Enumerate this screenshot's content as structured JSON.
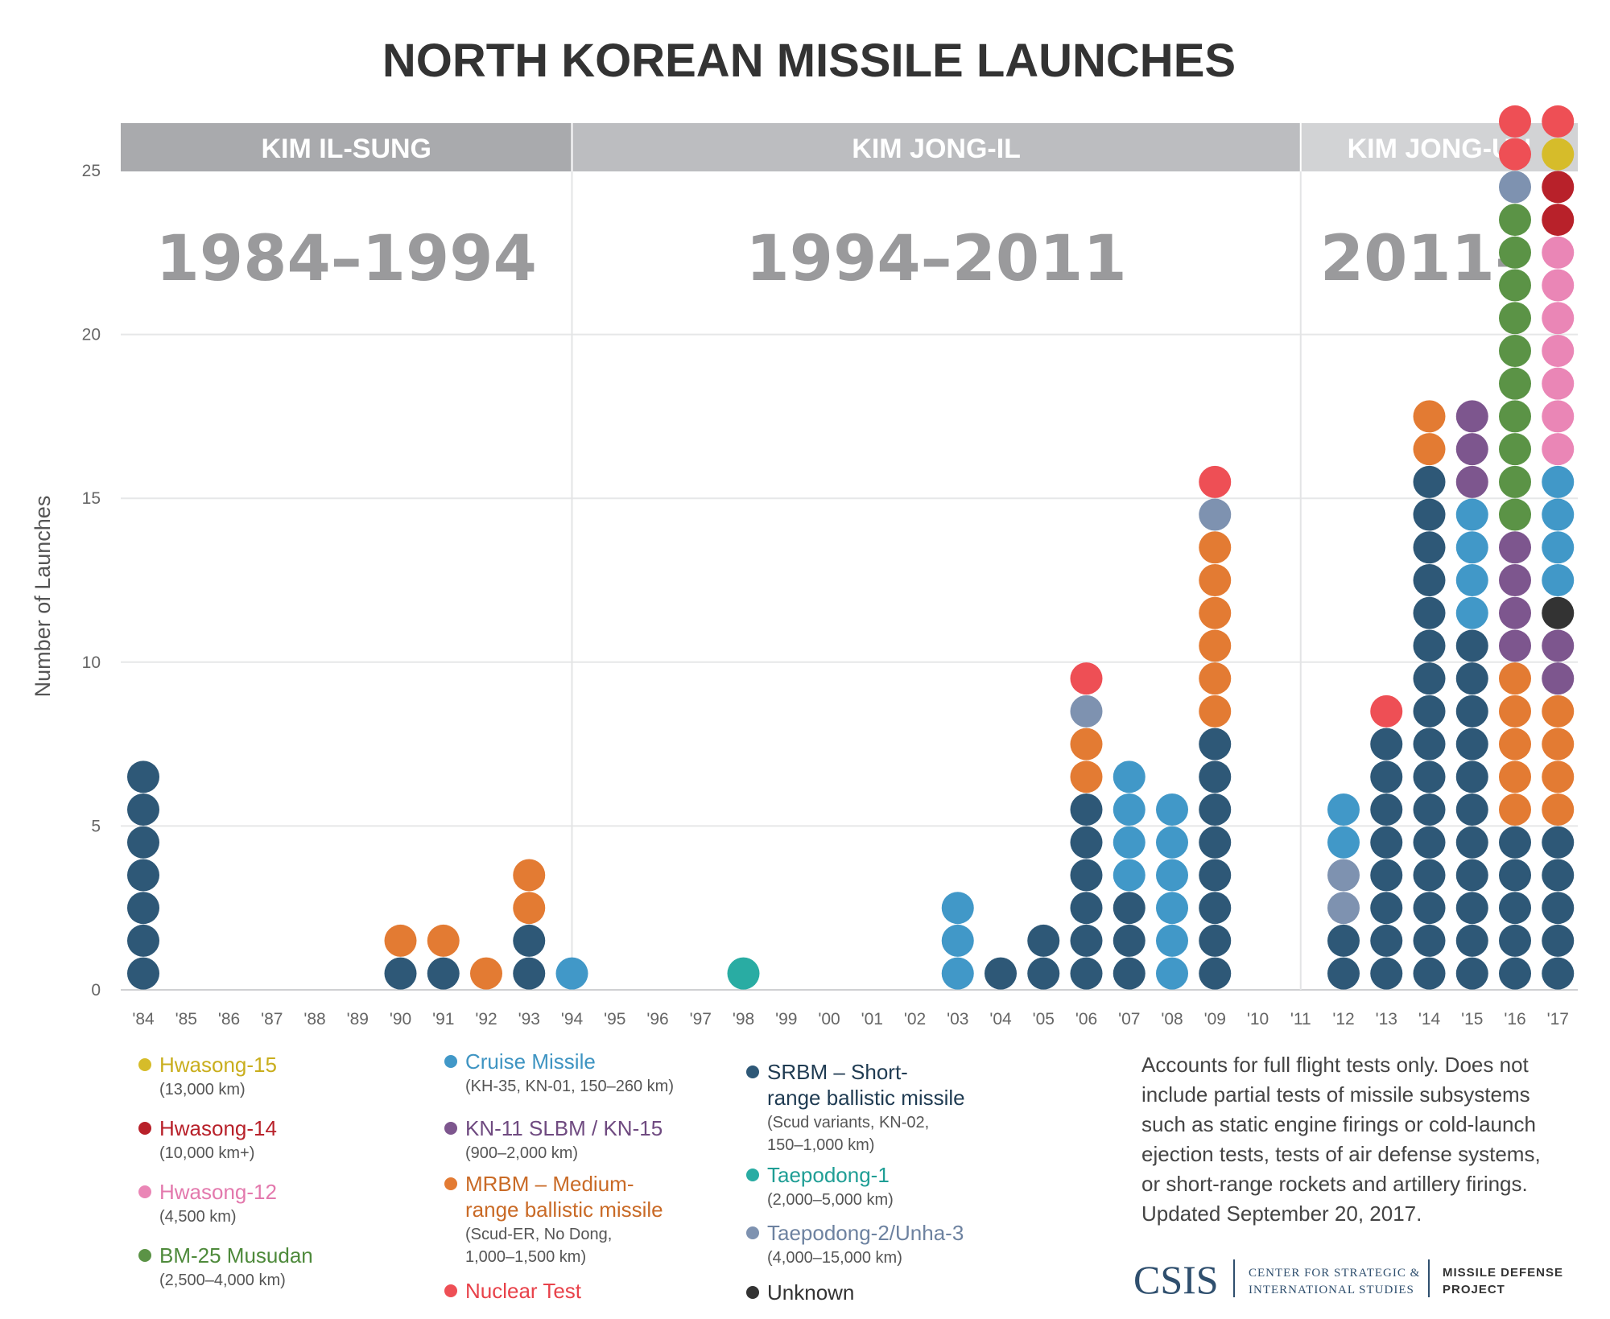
{
  "chart_data": {
    "type": "dot-stack",
    "title": "NORTH KOREAN MISSILE LAUNCHES",
    "ylabel": "Number of Launches",
    "ylim": [
      0,
      25
    ],
    "yticks": [
      "0",
      "5",
      "10",
      "15",
      "20",
      "25"
    ],
    "categories": [
      "'84",
      "'85",
      "'86",
      "'87",
      "'88",
      "'89",
      "'90",
      "'91",
      "'92",
      "'93",
      "'94",
      "'95",
      "'96",
      "'97",
      "'98",
      "'99",
      "'00",
      "'01",
      "'02",
      "'03",
      "'04",
      "'05",
      "'06",
      "'07",
      "'08",
      "'09",
      "'10",
      "'11",
      "'12",
      "'13",
      "'14",
      "'15",
      "'16",
      "'17"
    ],
    "eras": [
      {
        "leader": "KIM IL-SUNG",
        "years": "1984–1994",
        "band_color": "#a9aaad",
        "start_year": "'84",
        "end_year": "'94"
      },
      {
        "leader": "KIM JONG-IL",
        "years": "1994–2011",
        "band_color": "#bcbdc0",
        "start_year": "'94",
        "end_year": "'11"
      },
      {
        "leader": "KIM JONG-UN",
        "years": "2011–",
        "band_color": "#d2d3d5",
        "start_year": "'11",
        "end_year": "'17"
      }
    ],
    "stacks": [
      [
        "srbm",
        "srbm",
        "srbm",
        "srbm",
        "srbm",
        "srbm",
        "srbm"
      ],
      [],
      [],
      [],
      [],
      [],
      [
        "srbm",
        "mrbm"
      ],
      [
        "srbm",
        "mrbm"
      ],
      [
        "mrbm"
      ],
      [
        "srbm",
        "srbm",
        "mrbm",
        "mrbm"
      ],
      [
        "cruise"
      ],
      [],
      [],
      [],
      [
        "taepodong1"
      ],
      [],
      [],
      [],
      [],
      [
        "cruise",
        "cruise",
        "cruise"
      ],
      [
        "srbm"
      ],
      [
        "srbm",
        "srbm"
      ],
      [
        "srbm",
        "srbm",
        "srbm",
        "srbm",
        "srbm",
        "srbm",
        "mrbm",
        "mrbm",
        "taepodong2",
        "nuclear"
      ],
      [
        "srbm",
        "srbm",
        "srbm",
        "cruise",
        "cruise",
        "cruise",
        "cruise"
      ],
      [
        "cruise",
        "cruise",
        "cruise",
        "cruise",
        "cruise",
        "cruise"
      ],
      [
        "srbm",
        "srbm",
        "srbm",
        "srbm",
        "srbm",
        "srbm",
        "srbm",
        "srbm",
        "mrbm",
        "mrbm",
        "mrbm",
        "mrbm",
        "mrbm",
        "mrbm",
        "taepodong2",
        "nuclear"
      ],
      [],
      [],
      [
        "srbm",
        "srbm",
        "taepodong2",
        "taepodong2",
        "cruise",
        "cruise"
      ],
      [
        "srbm",
        "srbm",
        "srbm",
        "srbm",
        "srbm",
        "srbm",
        "srbm",
        "srbm",
        "nuclear"
      ],
      [
        "srbm",
        "srbm",
        "srbm",
        "srbm",
        "srbm",
        "srbm",
        "srbm",
        "srbm",
        "srbm",
        "srbm",
        "srbm",
        "srbm",
        "srbm",
        "srbm",
        "srbm",
        "srbm",
        "mrbm",
        "mrbm"
      ],
      [
        "srbm",
        "srbm",
        "srbm",
        "srbm",
        "srbm",
        "srbm",
        "srbm",
        "srbm",
        "srbm",
        "srbm",
        "srbm",
        "cruise",
        "cruise",
        "cruise",
        "cruise",
        "kn11",
        "kn11",
        "kn11"
      ],
      [
        "srbm",
        "srbm",
        "srbm",
        "srbm",
        "srbm",
        "mrbm",
        "mrbm",
        "mrbm",
        "mrbm",
        "mrbm",
        "kn11",
        "kn11",
        "kn11",
        "kn11",
        "musudan",
        "musudan",
        "musudan",
        "musudan",
        "musudan",
        "musudan",
        "musudan",
        "musudan",
        "musudan",
        "musudan",
        "taepodong2",
        "nuclear",
        "nuclear"
      ],
      [
        "srbm",
        "srbm",
        "srbm",
        "srbm",
        "srbm",
        "mrbm",
        "mrbm",
        "mrbm",
        "mrbm",
        "kn11",
        "kn11",
        "unknown",
        "cruise",
        "cruise",
        "cruise",
        "cruise",
        "hwasong12",
        "hwasong12",
        "hwasong12",
        "hwasong12",
        "hwasong12",
        "hwasong12",
        "hwasong12",
        "hwasong14",
        "hwasong14",
        "hwasong15",
        "nuclear"
      ]
    ],
    "legend": [
      {
        "key": "hwasong15",
        "name": "Hwasong-15",
        "desc": [
          "(13,000 km)"
        ]
      },
      {
        "key": "hwasong14",
        "name": "Hwasong-14",
        "desc": [
          "(10,000 km+)"
        ]
      },
      {
        "key": "hwasong12",
        "name": "Hwasong-12",
        "desc": [
          "(4,500 km)"
        ]
      },
      {
        "key": "musudan",
        "name": "BM-25 Musudan",
        "desc": [
          "(2,500–4,000 km)"
        ]
      },
      {
        "key": "cruise",
        "name": "Cruise Missile",
        "desc": [
          "(KH-35, KN-01, 150–260 km)"
        ]
      },
      {
        "key": "kn11",
        "name": "KN-11 SLBM / KN-15",
        "desc": [
          "(900–2,000 km)"
        ]
      },
      {
        "key": "mrbm",
        "name": "MRBM – Medium-",
        "name2": "range ballistic missile",
        "desc": [
          "(Scud-ER, No Dong,",
          "1,000–1,500 km)"
        ]
      },
      {
        "key": "nuclear",
        "name": "Nuclear Test",
        "desc": []
      },
      {
        "key": "srbm",
        "name": "SRBM – Short-",
        "name2": "range ballistic missile",
        "desc": [
          "(Scud variants, KN-02,",
          "150–1,000 km)"
        ]
      },
      {
        "key": "taepodong1",
        "name": "Taepodong-1",
        "desc": [
          "(2,000–5,000 km)"
        ]
      },
      {
        "key": "taepodong2",
        "name": "Taepodong-2/Unha-3",
        "desc": [
          "(4,000–15,000 km)"
        ]
      },
      {
        "key": "unknown",
        "name": "Unknown",
        "desc": []
      }
    ],
    "colors": {
      "hwasong15": "#d6bc2a",
      "hwasong14": "#b8212a",
      "hwasong12": "#ea86b6",
      "musudan": "#5b9346",
      "cruise": "#4198c8",
      "kn11": "#7d568e",
      "mrbm": "#e37b33",
      "nuclear": "#ee4f55",
      "srbm": "#2e5877",
      "taepodong1": "#29aca3",
      "taepodong2": "#7e92b0",
      "unknown": "#333333"
    },
    "legend_text_colors": {
      "hwasong15": "#c9ae1d",
      "hwasong14": "#b8212a",
      "hwasong12": "#e379ad",
      "musudan": "#4e8a3b",
      "cruise": "#3e94c2",
      "kn11": "#6f4a80",
      "mrbm": "#c96a26",
      "nuclear": "#e8424a",
      "srbm": "#1f3b52",
      "taepodong1": "#1f9e95",
      "taepodong2": "#6d82a0",
      "unknown": "#333333"
    },
    "note": [
      "Accounts for full flight tests only. Does not",
      "include partial tests of missile subsystems",
      "such as static engine firings or cold-launch",
      "ejection tests, tests of air defense systems,",
      "or short-range rockets and artillery firings.",
      "Updated September 20, 2017."
    ],
    "source": {
      "logo": "CSIS",
      "org_line1": "CENTER FOR STRATEGIC &",
      "org_line2": "INTERNATIONAL STUDIES",
      "project_line1": "MISSILE DEFENSE",
      "project_line2": "PROJECT"
    }
  }
}
